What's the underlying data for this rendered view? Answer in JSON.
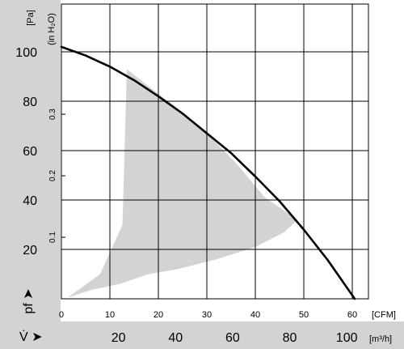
{
  "chart_data": {
    "type": "line",
    "title": "",
    "colors": {
      "curve": "#000000",
      "area": "#d3d3d3",
      "band": "#d3d3d3",
      "grid": "#000000"
    },
    "x_axis_cfm": {
      "label": "[CFM]",
      "ticks": [
        0,
        10,
        20,
        30,
        40,
        50,
        60
      ],
      "range": [
        0,
        63
      ]
    },
    "x_axis_m3h": {
      "label": "[m³/h]",
      "symbol": "V̇ ➤",
      "ticks": [
        20,
        40,
        60,
        80,
        100
      ]
    },
    "y_axis_pa": {
      "label": "[Pa]",
      "symbol": "pf ➤",
      "ticks": [
        20,
        40,
        60,
        80,
        100
      ],
      "range": [
        0,
        120
      ]
    },
    "y_axis_inh2o": {
      "label": "(in H₂O)",
      "ticks": [
        0.1,
        0.2,
        0.3
      ]
    },
    "series": [
      {
        "x": [
          0,
          5,
          10,
          15,
          20,
          25,
          30,
          35,
          40,
          45,
          50,
          55,
          60.5
        ],
        "y": [
          102,
          98.5,
          94,
          88.5,
          82,
          75,
          67,
          59,
          49.5,
          39.5,
          28,
          15.5,
          0
        ]
      }
    ],
    "operating_area": {
      "x": [
        1.3,
        8,
        12.6,
        13.5,
        18,
        24,
        30,
        36,
        42,
        48.7,
        46,
        40,
        32,
        24,
        18,
        12,
        6,
        1.3
      ],
      "y": [
        0.5,
        10,
        30,
        93,
        86,
        77,
        67,
        55,
        41,
        32,
        27,
        21,
        16,
        12,
        10,
        6,
        3.5,
        0.5
      ]
    }
  }
}
